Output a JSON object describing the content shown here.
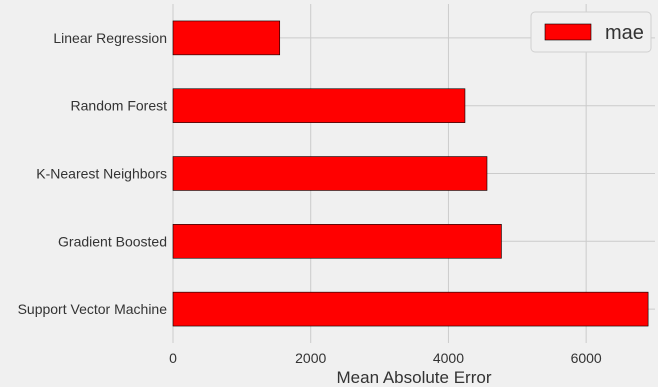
{
  "chart_data": {
    "type": "bar",
    "orientation": "horizontal",
    "categories": [
      "Linear Regression",
      "Random Forest",
      "K-Nearest Neighbors",
      "Gradient Boosted",
      "Support Vector Machine"
    ],
    "series": [
      {
        "name": "mae",
        "values": [
          1550,
          4240,
          4560,
          4770,
          6900
        ],
        "color": "#ff0000"
      }
    ],
    "xlabel": "Mean Absolute Error",
    "ylabel": "",
    "xlim": [
      0,
      7000
    ],
    "xticks": [
      0,
      2000,
      4000,
      6000
    ],
    "xtick_labels": [
      "0",
      "2000",
      "4000",
      "6000"
    ],
    "grid": true,
    "legend": {
      "position": "top-right",
      "entries": [
        "mae"
      ]
    },
    "colors": {
      "background": "#f0f0f0",
      "grid": "#cbcbcb",
      "bar_edge": "#000000"
    }
  }
}
